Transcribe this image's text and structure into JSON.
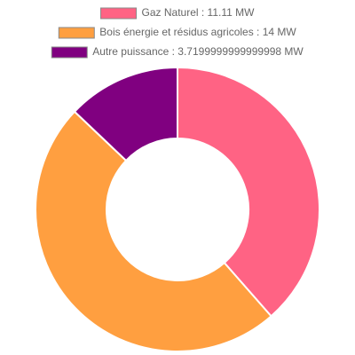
{
  "chart_data": {
    "type": "doughnut",
    "categories": [
      "Gaz Naturel : 11.11 MW",
      "Bois énergie et résidus agricoles : 14 MW",
      "Autre puissance : 3.7199999999999998 MW"
    ],
    "values": [
      11.11,
      14,
      3.7199999999999998
    ],
    "colors": [
      "#ff6384",
      "#ff9f40",
      "#800080"
    ],
    "legend": "top"
  }
}
